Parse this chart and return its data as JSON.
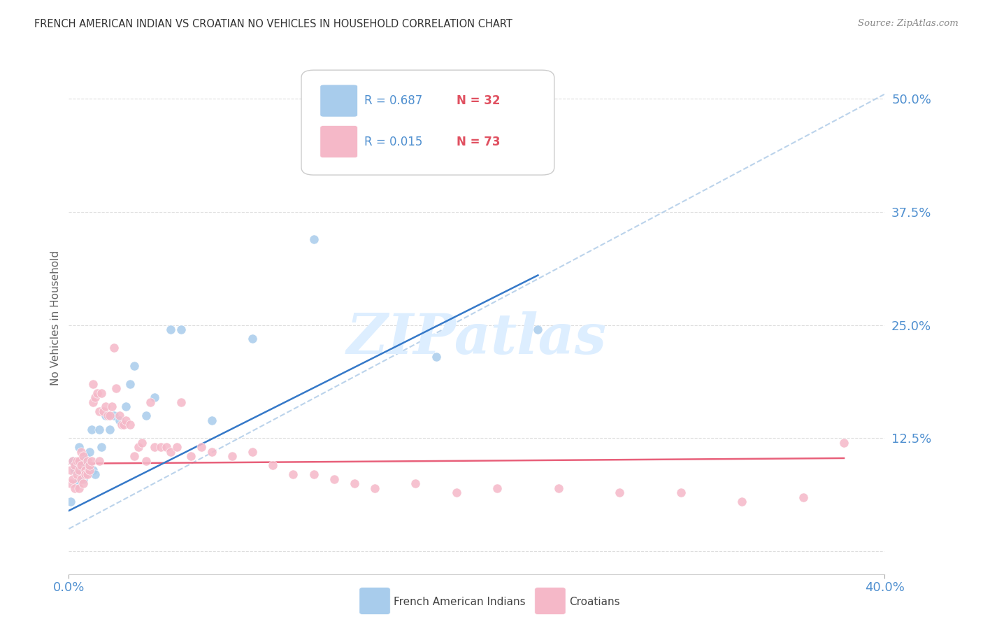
{
  "title": "FRENCH AMERICAN INDIAN VS CROATIAN NO VEHICLES IN HOUSEHOLD CORRELATION CHART",
  "source": "Source: ZipAtlas.com",
  "ylabel": "No Vehicles in Household",
  "xlim": [
    0.0,
    0.4
  ],
  "ylim": [
    -0.025,
    0.54
  ],
  "ytick_vals": [
    0.0,
    0.125,
    0.25,
    0.375,
    0.5
  ],
  "ytick_labels": [
    "",
    "12.5%",
    "25.0%",
    "37.5%",
    "50.0%"
  ],
  "xtick_vals": [
    0.0,
    0.4
  ],
  "xtick_labels": [
    "0.0%",
    "40.0%"
  ],
  "french_color": "#a8ccec",
  "croatian_color": "#f5b8c8",
  "french_line_color": "#3478c8",
  "croatian_line_color": "#e8607a",
  "dashed_line_color": "#b0cce8",
  "tick_color": "#5090d0",
  "bg_color": "#ffffff",
  "grid_color": "#dddddd",
  "watermark_color": "#ddeeff",
  "legend_r_color": "#5090d0",
  "legend_n_color": "#e05060",
  "french_scatter_x": [
    0.001,
    0.002,
    0.003,
    0.004,
    0.005,
    0.005,
    0.006,
    0.007,
    0.008,
    0.009,
    0.01,
    0.011,
    0.012,
    0.013,
    0.015,
    0.016,
    0.018,
    0.02,
    0.022,
    0.025,
    0.028,
    0.03,
    0.032,
    0.038,
    0.042,
    0.05,
    0.055,
    0.07,
    0.09,
    0.12,
    0.18,
    0.23
  ],
  "french_scatter_y": [
    0.055,
    0.1,
    0.09,
    0.075,
    0.115,
    0.09,
    0.1,
    0.08,
    0.105,
    0.095,
    0.11,
    0.135,
    0.09,
    0.085,
    0.135,
    0.115,
    0.15,
    0.135,
    0.15,
    0.145,
    0.16,
    0.185,
    0.205,
    0.15,
    0.17,
    0.245,
    0.245,
    0.145,
    0.235,
    0.345,
    0.215,
    0.245
  ],
  "croatian_scatter_x": [
    0.001,
    0.001,
    0.002,
    0.002,
    0.003,
    0.003,
    0.004,
    0.004,
    0.005,
    0.005,
    0.005,
    0.006,
    0.006,
    0.006,
    0.007,
    0.007,
    0.008,
    0.008,
    0.009,
    0.009,
    0.01,
    0.01,
    0.011,
    0.012,
    0.012,
    0.013,
    0.014,
    0.015,
    0.015,
    0.016,
    0.017,
    0.018,
    0.019,
    0.02,
    0.021,
    0.022,
    0.023,
    0.025,
    0.026,
    0.027,
    0.028,
    0.03,
    0.032,
    0.034,
    0.036,
    0.038,
    0.04,
    0.042,
    0.045,
    0.048,
    0.05,
    0.053,
    0.055,
    0.06,
    0.065,
    0.07,
    0.08,
    0.09,
    0.1,
    0.11,
    0.12,
    0.13,
    0.14,
    0.15,
    0.17,
    0.19,
    0.21,
    0.24,
    0.27,
    0.3,
    0.33,
    0.36,
    0.38
  ],
  "croatian_scatter_y": [
    0.075,
    0.09,
    0.08,
    0.1,
    0.07,
    0.095,
    0.085,
    0.1,
    0.07,
    0.09,
    0.1,
    0.08,
    0.095,
    0.11,
    0.075,
    0.105,
    0.09,
    0.085,
    0.085,
    0.1,
    0.09,
    0.095,
    0.1,
    0.185,
    0.165,
    0.17,
    0.175,
    0.155,
    0.1,
    0.175,
    0.155,
    0.16,
    0.15,
    0.15,
    0.16,
    0.225,
    0.18,
    0.15,
    0.14,
    0.14,
    0.145,
    0.14,
    0.105,
    0.115,
    0.12,
    0.1,
    0.165,
    0.115,
    0.115,
    0.115,
    0.11,
    0.115,
    0.165,
    0.105,
    0.115,
    0.11,
    0.105,
    0.11,
    0.095,
    0.085,
    0.085,
    0.08,
    0.075,
    0.07,
    0.075,
    0.065,
    0.07,
    0.07,
    0.065,
    0.065,
    0.055,
    0.06,
    0.12
  ],
  "french_line_x": [
    0.0,
    0.23
  ],
  "french_line_y": [
    0.045,
    0.305
  ],
  "croatian_line_x": [
    0.0,
    0.38
  ],
  "croatian_line_y": [
    0.097,
    0.103
  ],
  "dashed_line_x": [
    0.0,
    0.4
  ],
  "dashed_line_y": [
    0.025,
    0.505
  ],
  "r_french": "0.687",
  "n_french": "32",
  "r_croatian": "0.015",
  "n_croatian": "73"
}
